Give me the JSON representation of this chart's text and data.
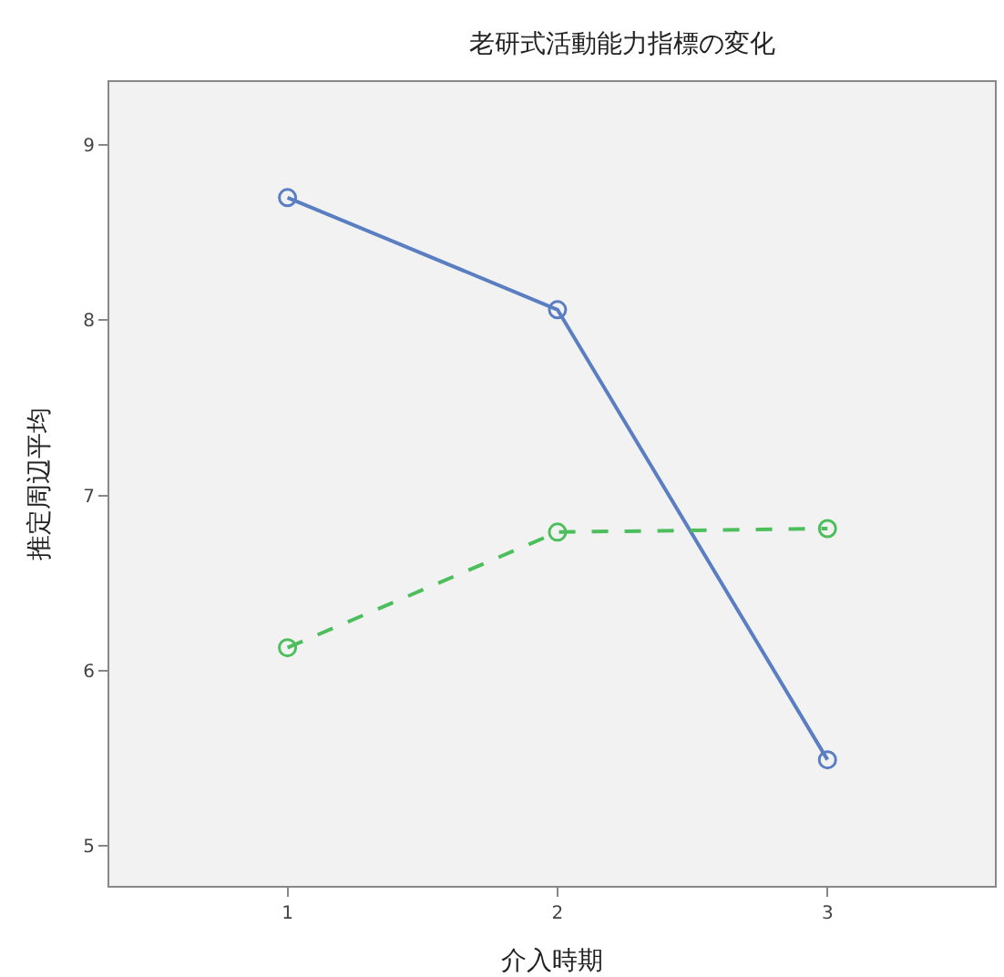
{
  "chart_data": {
    "type": "line",
    "title": "老研式活動能力指標の変化",
    "xlabel": "介入時期",
    "ylabel": "推定周辺平均",
    "x": [
      1,
      2,
      3
    ],
    "series": [
      {
        "color": "#5a7ec2",
        "values": [
          8.7,
          8.06,
          5.49
        ],
        "line_style": "solid"
      },
      {
        "color": "#4cbf5c",
        "values": [
          6.13,
          6.79,
          6.81
        ],
        "line_style": "dashed"
      }
    ],
    "xlim": [
      0.34,
      3.62
    ],
    "xticks": [
      1,
      2,
      3
    ],
    "ylim": [
      4.77,
      9.36
    ],
    "yticks": [
      5,
      6,
      7,
      8,
      9
    ],
    "grid": false,
    "marker": "circle"
  }
}
